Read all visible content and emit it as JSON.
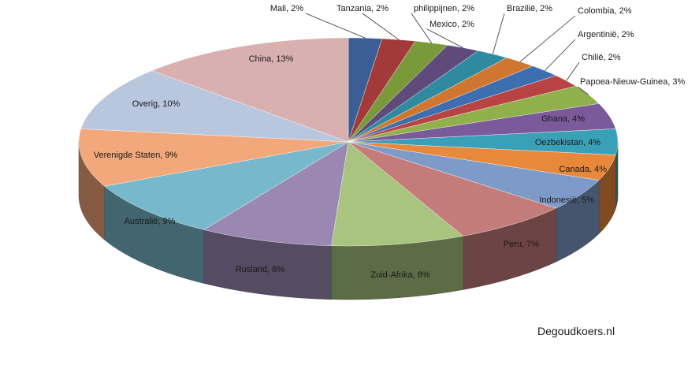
{
  "chart_data": {
    "type": "pie",
    "style": "3d",
    "slices": [
      {
        "label": "Mali",
        "value": 2,
        "display": "Mali, 2%",
        "color": "#3b5f95"
      },
      {
        "label": "Tanzania",
        "value": 2,
        "display": "Tanzania, 2%",
        "color": "#a33a3a"
      },
      {
        "label": "philippijnen",
        "value": 2,
        "display": "philippijnen, 2%",
        "color": "#7a9a3a"
      },
      {
        "label": "Mexico",
        "value": 2,
        "display": "Mexico, 2%",
        "color": "#5e4b7c"
      },
      {
        "label": "Braziliё",
        "value": 2,
        "display": "Braziliё, 2%",
        "color": "#2f8aa0"
      },
      {
        "label": "Colombia",
        "value": 2,
        "display": "Colombia, 2%",
        "color": "#d1762e"
      },
      {
        "label": "Argentiniё",
        "value": 2,
        "display": "Argentiniё,  2%",
        "color": "#3d6fb0"
      },
      {
        "label": "Chiliё",
        "value": 2,
        "display": "Chiliё, 2%",
        "color": "#b84343"
      },
      {
        "label": "Papoea-Nieuw-Guinea",
        "value": 3,
        "display": "Papoea-Nieuw-Guinea, 3%",
        "color": "#8fb04a"
      },
      {
        "label": "Ghana",
        "value": 4,
        "display": "Ghana, 4%",
        "color": "#7a5a9a"
      },
      {
        "label": "Oezbekistan",
        "value": 4,
        "display": "Oezbekistan, 4%",
        "color": "#3aa0b8"
      },
      {
        "label": "Canada",
        "value": 4,
        "display": "Canada, 4%",
        "color": "#e8883a"
      },
      {
        "label": "Indonesiё",
        "value": 5,
        "display": "Indonesiё, 5%",
        "color": "#7d9ac8"
      },
      {
        "label": "Peru",
        "value": 7,
        "display": "Peru, 7%",
        "color": "#c47c7a"
      },
      {
        "label": "Zuid-Afrika",
        "value": 8,
        "display": "Zuid-Afrika, 8%",
        "color": "#a8c47e"
      },
      {
        "label": "Rusland",
        "value": 8,
        "display": "Rusland, 8%",
        "color": "#9a88b2"
      },
      {
        "label": "Australiё",
        "value": 9,
        "display": "Australiё, 9%",
        "color": "#78b8cc"
      },
      {
        "label": "Verenigde Staten",
        "value": 9,
        "display": "Verenigde Staten,  9%",
        "color": "#f2a87a"
      },
      {
        "label": "Overig",
        "value": 10,
        "display": "Overig, 10%",
        "color": "#b8c6de"
      },
      {
        "label": "China",
        "value": 13,
        "display": "China, 13%",
        "color": "#d9b0b0"
      }
    ],
    "legend": "none",
    "start": "top",
    "direction": "clockwise"
  },
  "watermark": "Degoudkoers.nl"
}
